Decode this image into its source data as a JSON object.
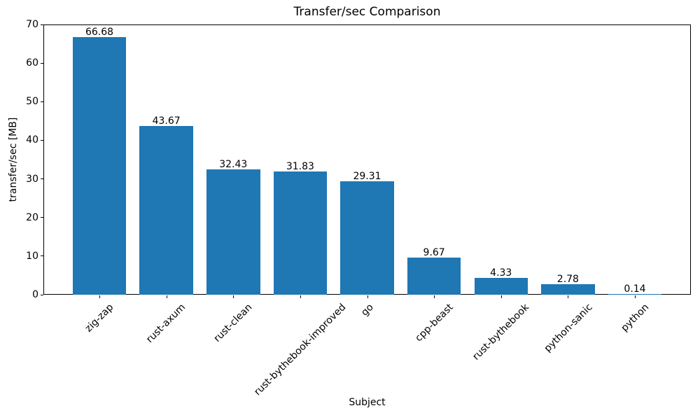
{
  "chart_data": {
    "type": "bar",
    "title": "Transfer/sec Comparison",
    "xlabel": "Subject",
    "ylabel": "transfer/sec [MB]",
    "categories": [
      "zig-zap",
      "rust-axum",
      "rust-clean",
      "rust-bythebook-improved",
      "go",
      "cpp-beast",
      "rust-bythebook",
      "python-sanic",
      "python"
    ],
    "values": [
      66.68,
      43.67,
      32.43,
      31.83,
      29.31,
      9.67,
      4.33,
      2.78,
      0.14
    ],
    "value_labels": [
      "66.68",
      "43.67",
      "32.43",
      "31.83",
      "29.31",
      "9.67",
      "4.33",
      "2.78",
      "0.14"
    ],
    "y_ticks": [
      "0",
      "10",
      "20",
      "30",
      "40",
      "50",
      "60",
      "70"
    ],
    "ylim": [
      0,
      70
    ],
    "x_tick_rotation_deg": 45,
    "grid": false,
    "bar_color": "#1f77b4",
    "text_color": "#000000",
    "background_color": "#ffffff"
  }
}
